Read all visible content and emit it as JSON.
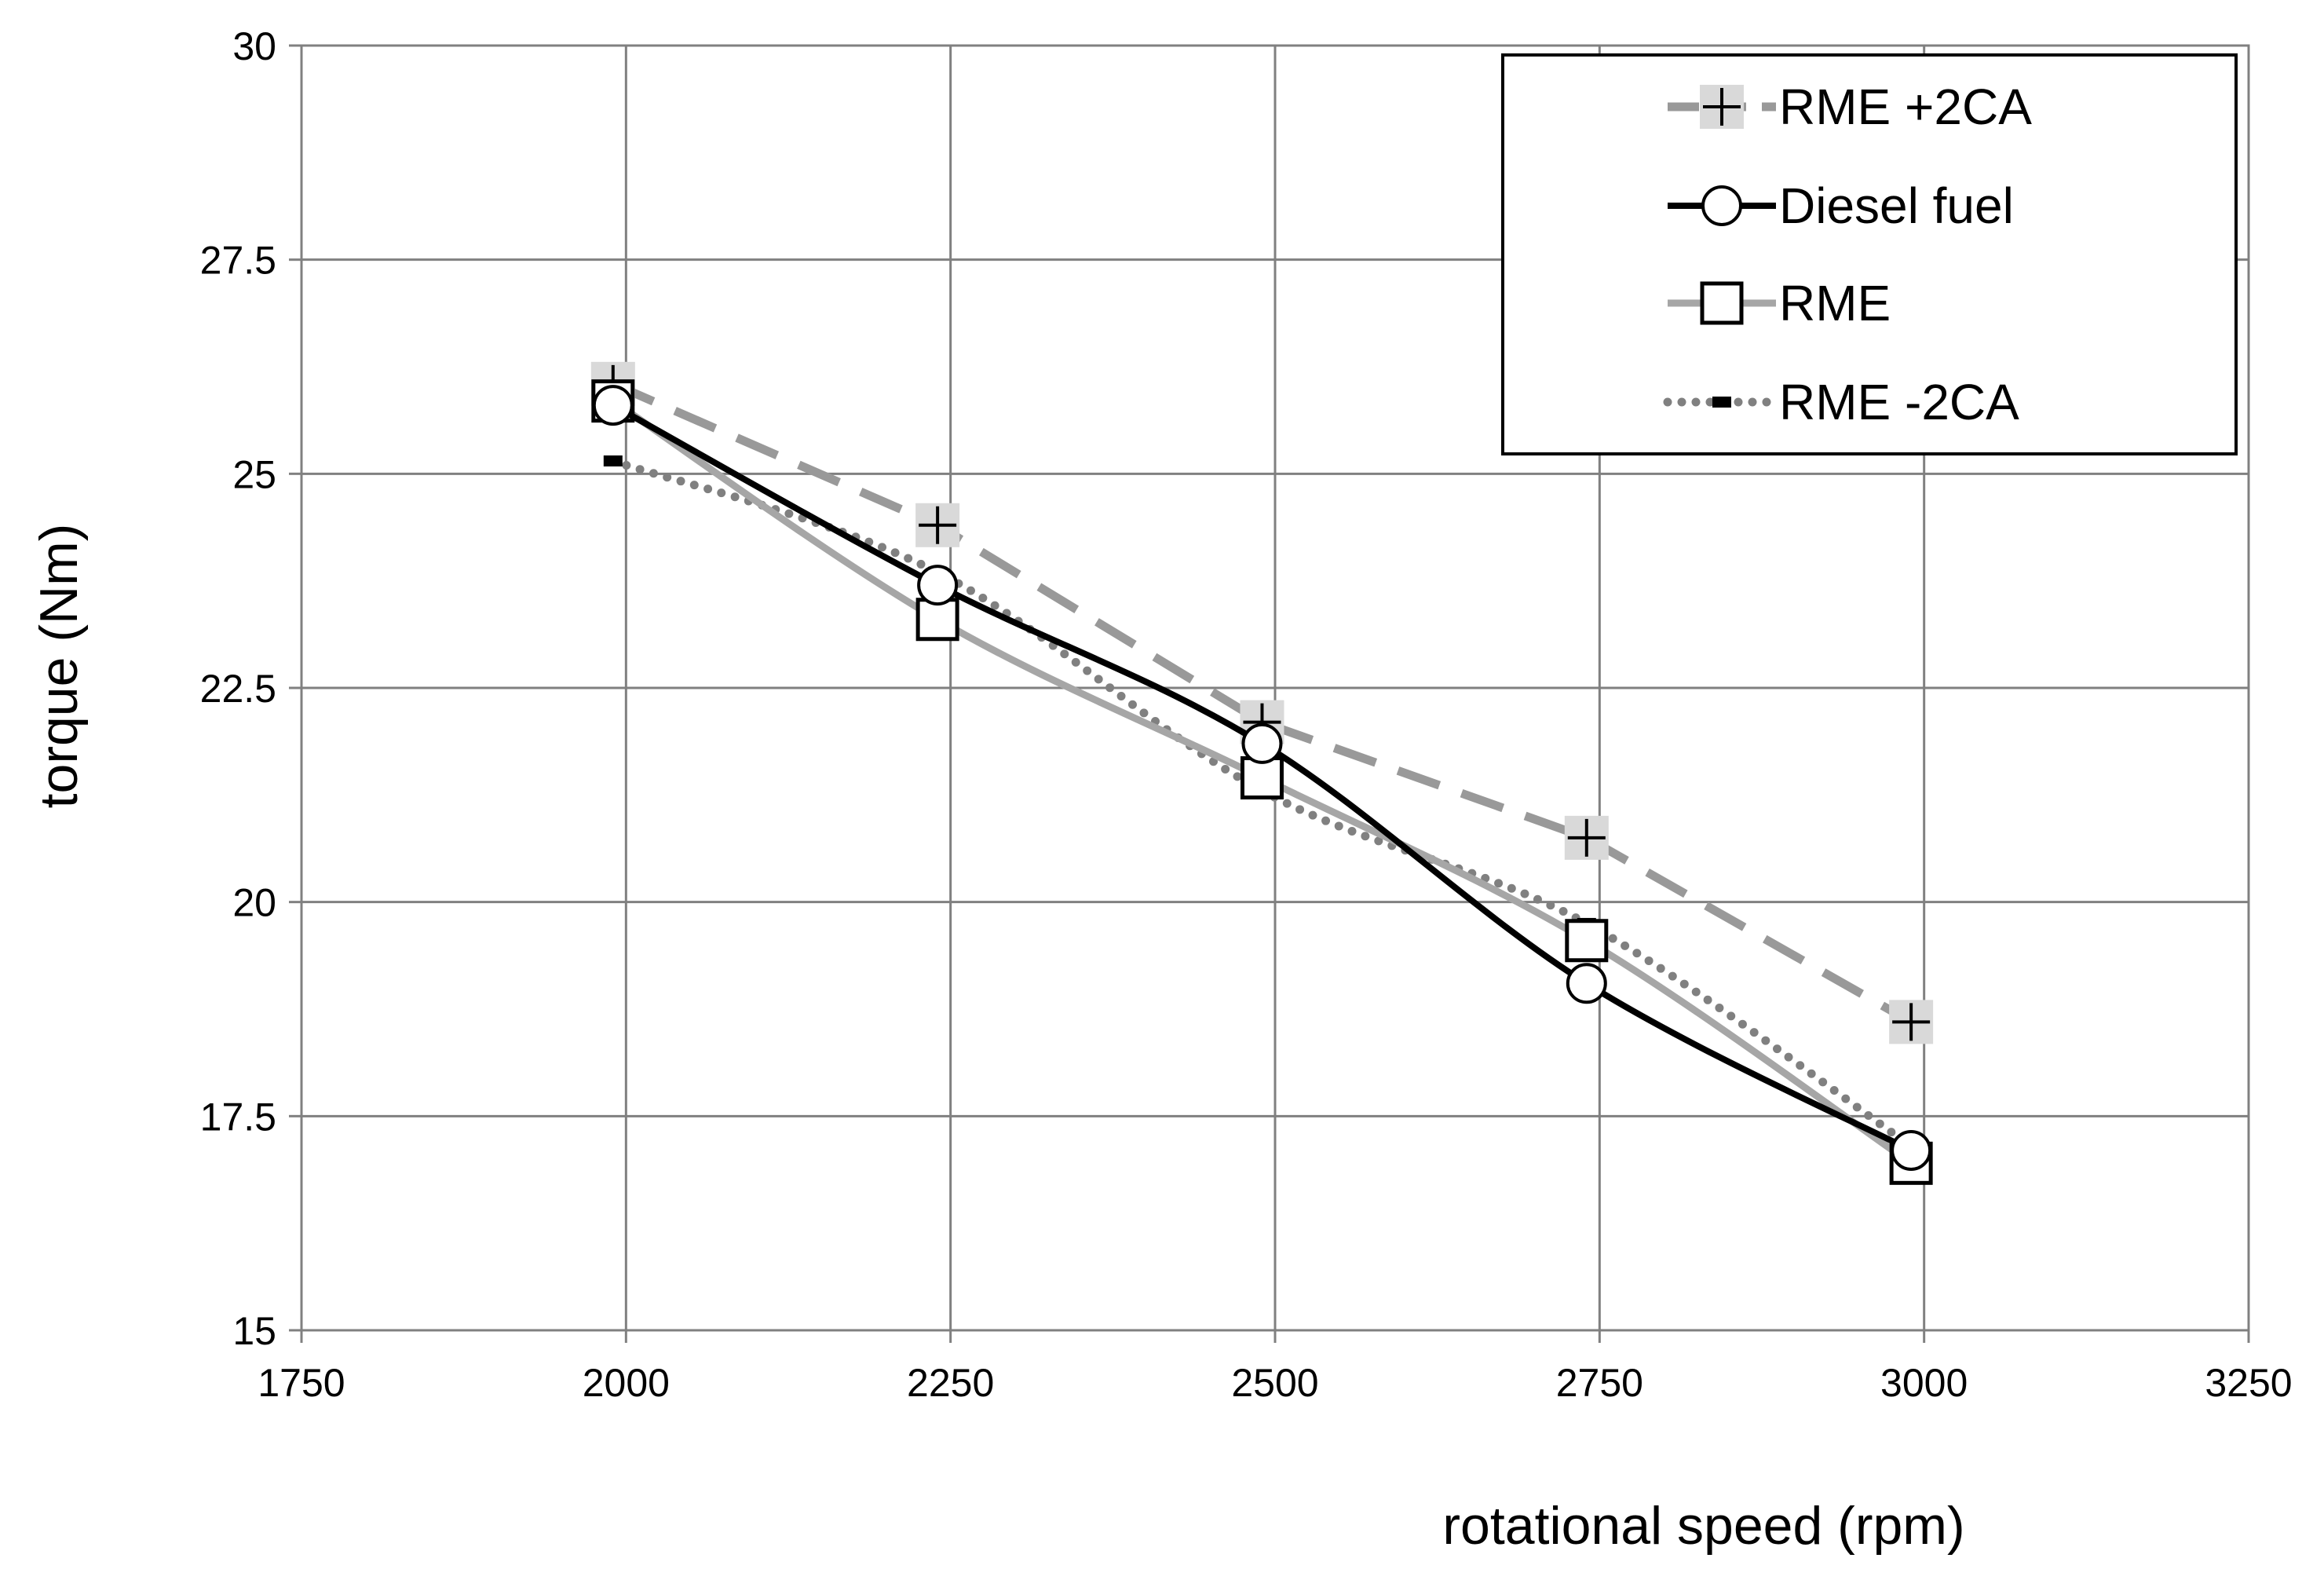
{
  "chart_data": {
    "type": "line",
    "title": "",
    "xlabel": "rotational speed (rpm)",
    "ylabel": "torque (Nm)",
    "xlim": [
      1750,
      3250
    ],
    "ylim": [
      15,
      30
    ],
    "x_ticks": [
      1750,
      2000,
      2250,
      2500,
      2750,
      3000,
      3250
    ],
    "y_ticks": [
      15,
      17.5,
      20,
      22.5,
      25,
      27.5,
      30
    ],
    "x_tick_labels": [
      "1750",
      "2000",
      "2250",
      "2500",
      "2750",
      "3000",
      "3250"
    ],
    "y_tick_labels": [
      "15",
      "17.5",
      "20",
      "22.5",
      "25",
      "27.5",
      "30"
    ],
    "grid": true,
    "legend_position": "top-right",
    "series": [
      {
        "name": "RME +2CA",
        "x": [
          1990,
          2240,
          2490,
          2740,
          2990
        ],
        "y": [
          26.05,
          24.4,
          22.1,
          20.75,
          18.6
        ],
        "color": "#999999",
        "style": "dashed",
        "marker": "plus",
        "marker_bg": "#d9d9d9"
      },
      {
        "name": "Diesel fuel",
        "x": [
          1990,
          2240,
          2490,
          2740,
          2990
        ],
        "y": [
          25.8,
          23.7,
          21.85,
          19.05,
          17.1
        ],
        "color": "#000000",
        "style": "solid",
        "marker": "circle"
      },
      {
        "name": "RME",
        "x": [
          1990,
          2240,
          2490,
          2740,
          2990
        ],
        "y": [
          25.85,
          23.3,
          21.45,
          19.55,
          16.95
        ],
        "color": "#a6a6a6",
        "style": "solid",
        "marker": "square"
      },
      {
        "name": "RME -2CA",
        "x": [
          1990,
          2240,
          2490,
          2740,
          2990
        ],
        "y": [
          25.15,
          23.85,
          21.3,
          19.75,
          17.15
        ],
        "color": "#808080",
        "style": "dotted",
        "marker": "dash"
      }
    ]
  }
}
